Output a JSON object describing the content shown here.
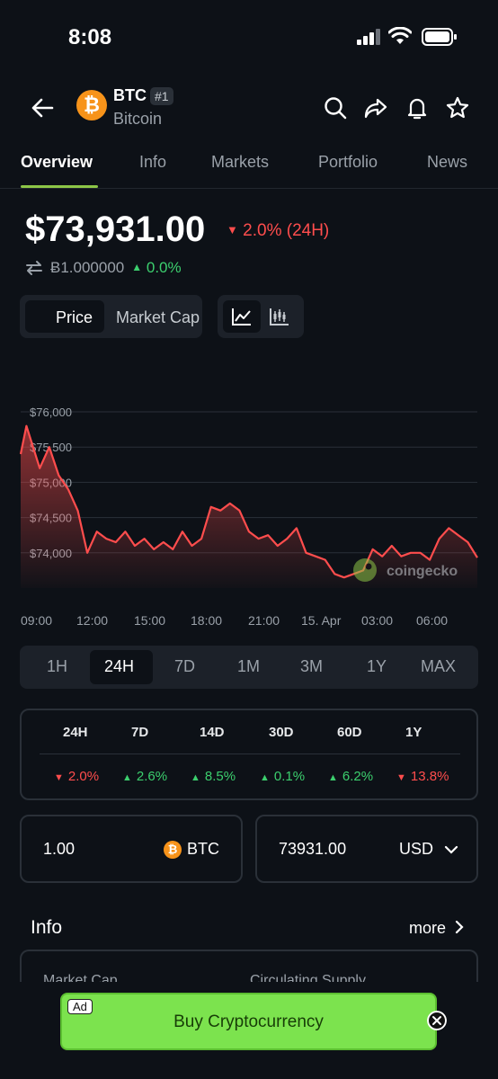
{
  "status": {
    "time": "8:08"
  },
  "coin": {
    "symbol": "BTC",
    "rank": "#1",
    "name": "Bitcoin",
    "logo_glyph": "₿",
    "logo_color": "#f7931a"
  },
  "header_icons": [
    "back-arrow-icon",
    "search-icon",
    "share-icon",
    "bell-icon",
    "star-icon"
  ],
  "tabs": [
    {
      "label": "Overview",
      "active": true
    },
    {
      "label": "Info"
    },
    {
      "label": "Markets"
    },
    {
      "label": "Portfolio"
    },
    {
      "label": "News"
    }
  ],
  "price": {
    "usd": "$73,931.00",
    "change_24h": "2.0% (24H)",
    "btc": "Ƀ1.000000",
    "btc_change": "0.0%"
  },
  "toggles": {
    "price": "Price",
    "market_cap": "Market Cap"
  },
  "chart_data": {
    "type": "line",
    "y_ticks": [
      "$76,000",
      "$75,500",
      "$75,000",
      "$74,500",
      "$74,000"
    ],
    "ylim": [
      73500,
      76000
    ],
    "x_ticks": [
      "09:00",
      "12:00",
      "15:00",
      "18:00",
      "21:00",
      "15. Apr",
      "03:00",
      "06:00"
    ],
    "watermark": "coingecko",
    "x": [
      0,
      0.3,
      1,
      1.5,
      2,
      2.5,
      3,
      3.5,
      4,
      4.5,
      5,
      5.5,
      6,
      6.5,
      7,
      7.5,
      8,
      8.5,
      9,
      9.5,
      10,
      10.5,
      11,
      11.5,
      12,
      12.5,
      13,
      13.5,
      14,
      14.5,
      15,
      15.5,
      16,
      16.5,
      17,
      17.5,
      18,
      18.5,
      19,
      19.5,
      20,
      20.5,
      21,
      21.5,
      22,
      22.5,
      23,
      23.5,
      24
    ],
    "values": [
      75400,
      75800,
      75200,
      75500,
      75100,
      74900,
      74600,
      74000,
      74300,
      74200,
      74150,
      74300,
      74100,
      74200,
      74050,
      74150,
      74050,
      74300,
      74100,
      74200,
      74650,
      74600,
      74700,
      74600,
      74300,
      74200,
      74250,
      74100,
      74200,
      74350,
      74000,
      73950,
      73900,
      73700,
      73650,
      73700,
      73750,
      74050,
      73950,
      74100,
      73950,
      74000,
      74000,
      73900,
      74200,
      74350,
      74250,
      74150,
      73931
    ],
    "color": "#ff4d4d"
  },
  "ranges": [
    {
      "label": "1H"
    },
    {
      "label": "24H",
      "active": true
    },
    {
      "label": "7D"
    },
    {
      "label": "1M"
    },
    {
      "label": "3M"
    },
    {
      "label": "1Y"
    },
    {
      "label": "MAX"
    }
  ],
  "performance": [
    {
      "period": "24H",
      "value": "2.0%",
      "dir": "down"
    },
    {
      "period": "7D",
      "value": "2.6%",
      "dir": "up"
    },
    {
      "period": "14D",
      "value": "8.5%",
      "dir": "up"
    },
    {
      "period": "30D",
      "value": "0.1%",
      "dir": "up"
    },
    {
      "period": "60D",
      "value": "6.2%",
      "dir": "up"
    },
    {
      "period": "1Y",
      "value": "13.8%",
      "dir": "down"
    }
  ],
  "converter": {
    "amount": "1.00",
    "from": "BTC",
    "result": "73931.00",
    "to": "USD"
  },
  "info": {
    "title": "Info",
    "more": "more",
    "label1": "Market Cap",
    "label2": "Circulating Supply"
  },
  "ad": {
    "tag": "Ad",
    "text": "Buy Cryptocurrency"
  }
}
